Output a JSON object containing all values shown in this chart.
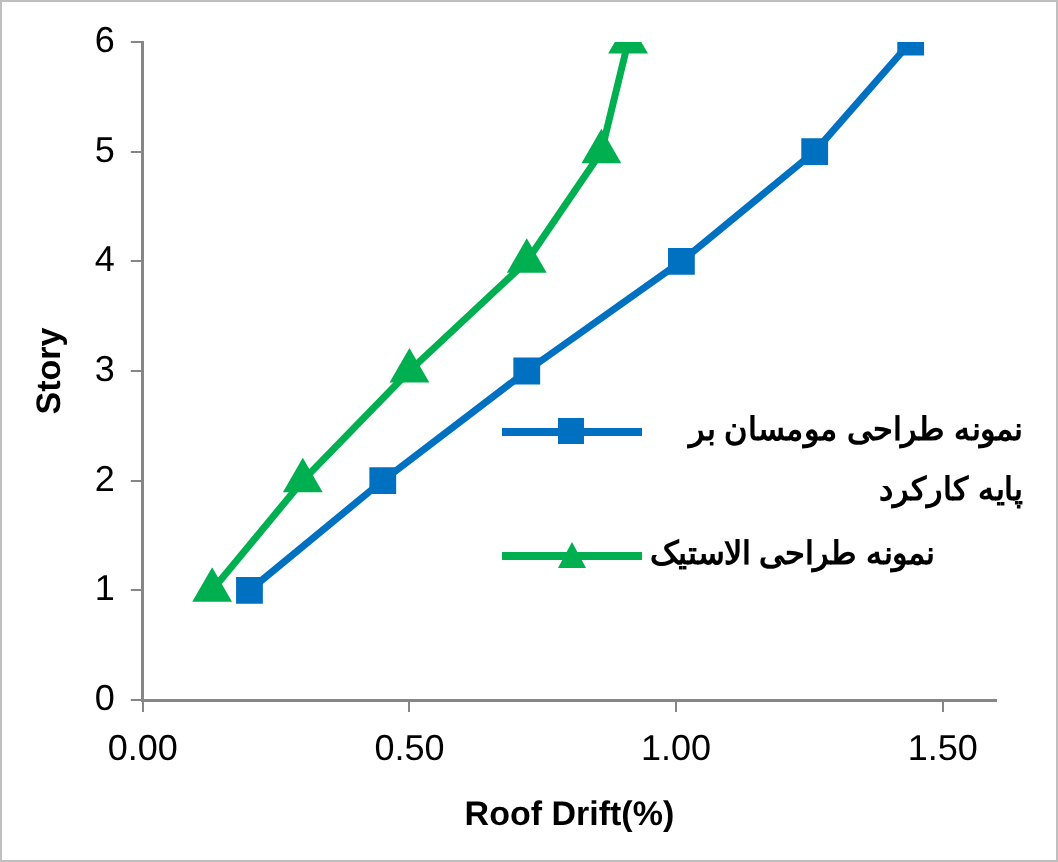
{
  "chart_data": {
    "type": "line",
    "xlabel": "Roof Drift(%)",
    "ylabel": "Story",
    "xlim": [
      0,
      1.6
    ],
    "xticks": [
      {
        "value": 0,
        "label": "0.00"
      },
      {
        "value": 0.5,
        "label": "0.50"
      },
      {
        "value": 1,
        "label": "1.00"
      },
      {
        "value": 1.5,
        "label": "1.50"
      }
    ],
    "ylim": [
      0,
      6
    ],
    "yticks": [
      0,
      1,
      2,
      3,
      4,
      5,
      6
    ],
    "grid": false,
    "legend": "right",
    "line_style": "solid",
    "series": [
      {
        "name": "نمونه طراحی مومسان بر پایه کارکرد",
        "color": "#0070c0",
        "marker": "square",
        "x": [
          0.2,
          0.45,
          0.72,
          1.01,
          1.26,
          1.44
        ],
        "values": [
          1,
          2,
          3,
          4,
          5,
          6
        ]
      },
      {
        "name": "نمونه طراحی الاستیک",
        "color": "#00b050",
        "marker": "triangle",
        "x": [
          0.13,
          0.3,
          0.5,
          0.72,
          0.86,
          0.91
        ],
        "values": [
          1,
          2,
          3,
          4,
          5,
          6
        ]
      }
    ]
  }
}
